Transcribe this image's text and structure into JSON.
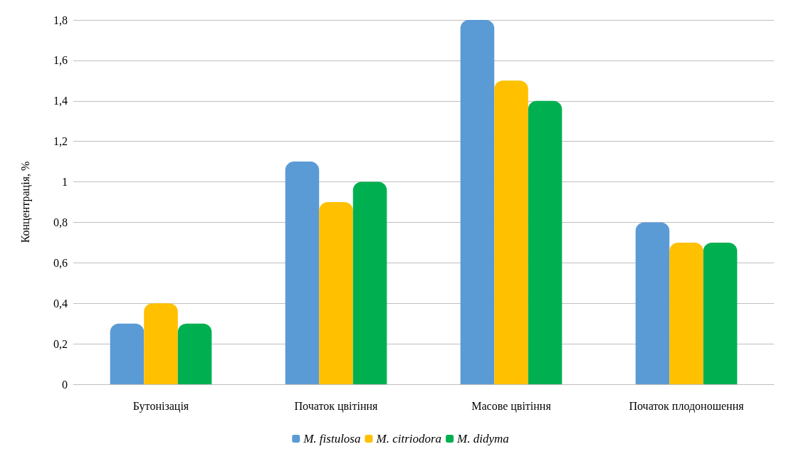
{
  "chart_data": {
    "type": "bar",
    "ylabel": "Концентрація, %",
    "categories": [
      "Бутонізація",
      "Початок цвітіння",
      "Масове цвітіння",
      "Початок плодоношення"
    ],
    "series": [
      {
        "name": "M. fistulosa",
        "color": "#5b9bd5",
        "values": [
          0.3,
          1.1,
          1.8,
          0.8
        ]
      },
      {
        "name": "M. citriodora",
        "color": "#ffc000",
        "values": [
          0.4,
          0.9,
          1.5,
          0.7
        ]
      },
      {
        "name": "M. didyma",
        "color": "#00b050",
        "values": [
          0.3,
          1.0,
          1.4,
          0.7
        ]
      }
    ],
    "ylim": [
      0,
      1.8
    ],
    "yticks": [
      0,
      {
        "value": 0.2,
        "label": "0,2"
      },
      {
        "value": 0.4,
        "label": "0,4"
      },
      {
        "value": 0.6,
        "label": "0,6"
      },
      {
        "value": 0.8,
        "label": "0,8"
      },
      1,
      {
        "value": 1.2,
        "label": "1,2"
      },
      {
        "value": 1.4,
        "label": "1,4"
      },
      {
        "value": 1.6,
        "label": "1,6"
      },
      {
        "value": 1.8,
        "label": "1,8"
      }
    ],
    "grid": "y",
    "legend": "bottom"
  }
}
